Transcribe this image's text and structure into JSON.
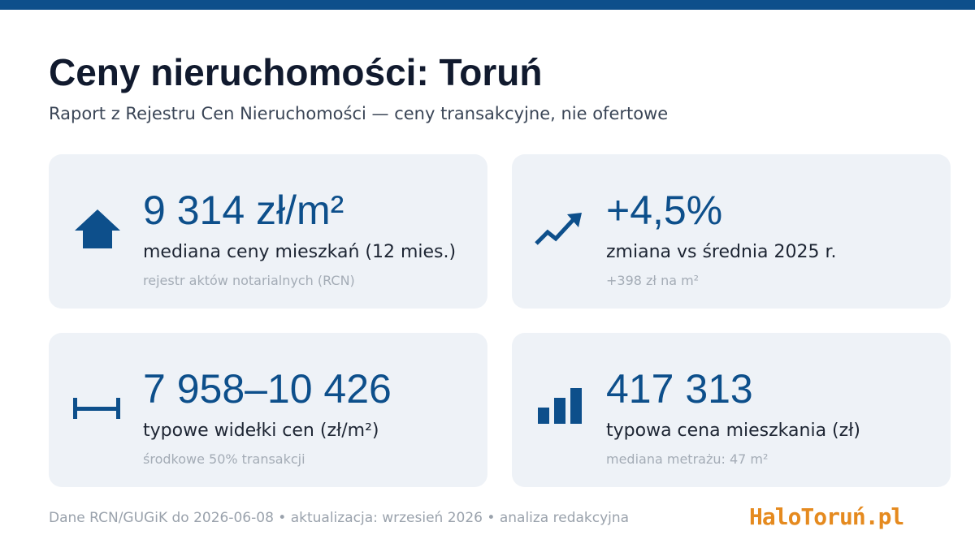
{
  "header": {
    "title": "Ceny nieruchomości: Toruń",
    "subtitle": "Raport z Rejestru Cen Nieruchomości — ceny transakcyjne, nie ofertowe"
  },
  "cards": [
    {
      "value": "9 314 zł/m²",
      "label": "mediana ceny mieszkań (12 mies.)",
      "note": "rejestr aktów notarialnych (RCN)"
    },
    {
      "value": "+4,5%",
      "label": "zmiana vs średnia 2025 r.",
      "note": "+398 zł na m²"
    },
    {
      "value": "7 958–10 426",
      "label": "typowe widełki cen (zł/m²)",
      "note": "środkowe 50% transakcji"
    },
    {
      "value": "417 313",
      "label": "typowa cena mieszkania (zł)",
      "note": "mediana metrażu: 47 m²"
    }
  ],
  "footer": {
    "source": "Dane RCN/GUGiK do 2026-06-08 • aktualizacja: wrzesień 2026 • analiza redakcyjna",
    "logo": "HaloToruń.pl"
  }
}
